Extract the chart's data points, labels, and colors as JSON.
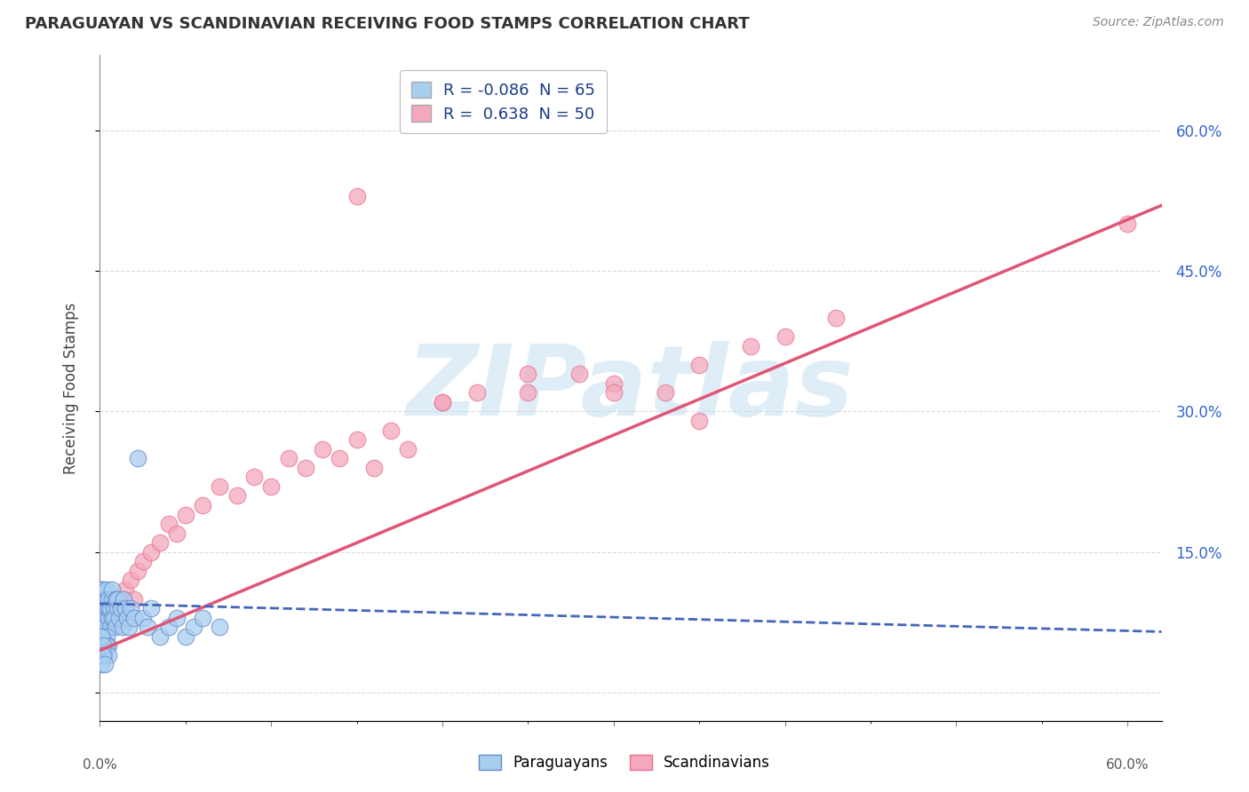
{
  "title": "PARAGUAYAN VS SCANDINAVIAN RECEIVING FOOD STAMPS CORRELATION CHART",
  "source": "Source: ZipAtlas.com",
  "ylabel": "Receiving Food Stamps",
  "right_yticklabels": [
    "",
    "15.0%",
    "30.0%",
    "45.0%",
    "60.0%"
  ],
  "xlim": [
    0.0,
    0.62
  ],
  "ylim": [
    -0.03,
    0.68
  ],
  "watermark": "ZIPatlas",
  "legend_paraguayan": "Paraguayans",
  "legend_scandinavian": "Scandinavians",
  "R_paraguayan": -0.086,
  "N_paraguayan": 65,
  "R_scandinavian": 0.638,
  "N_scandinavian": 50,
  "color_paraguayan": "#a8cef0",
  "color_scandinavian": "#f4a8bc",
  "color_edge_paraguayan": "#6688cc",
  "color_edge_scandinavian": "#e87090",
  "color_line_paraguayan": "#4466bb",
  "color_line_scandinavian": "#e05575",
  "legend_text_color": "#1a3a8a",
  "background_color": "#ffffff",
  "grid_color": "#cccccc",
  "title_color": "#333333",
  "watermark_color": "#c0dcf0",
  "par_x": [
    0.001,
    0.001,
    0.001,
    0.001,
    0.002,
    0.002,
    0.002,
    0.002,
    0.002,
    0.003,
    0.003,
    0.003,
    0.003,
    0.004,
    0.004,
    0.004,
    0.005,
    0.005,
    0.005,
    0.006,
    0.006,
    0.007,
    0.007,
    0.007,
    0.008,
    0.008,
    0.009,
    0.009,
    0.01,
    0.01,
    0.011,
    0.012,
    0.013,
    0.014,
    0.015,
    0.016,
    0.017,
    0.018,
    0.02,
    0.022,
    0.025,
    0.028,
    0.03,
    0.035,
    0.04,
    0.045,
    0.05,
    0.055,
    0.06,
    0.07,
    0.001,
    0.002,
    0.003,
    0.004,
    0.005,
    0.001,
    0.002,
    0.003,
    0.004,
    0.005,
    0.001,
    0.002,
    0.001,
    0.002,
    0.003
  ],
  "par_y": [
    0.09,
    0.1,
    0.11,
    0.07,
    0.1,
    0.09,
    0.11,
    0.08,
    0.07,
    0.1,
    0.09,
    0.08,
    0.07,
    0.09,
    0.1,
    0.11,
    0.08,
    0.09,
    0.1,
    0.07,
    0.09,
    0.08,
    0.1,
    0.11,
    0.09,
    0.08,
    0.1,
    0.07,
    0.09,
    0.1,
    0.08,
    0.09,
    0.07,
    0.1,
    0.09,
    0.08,
    0.07,
    0.09,
    0.08,
    0.25,
    0.08,
    0.07,
    0.09,
    0.06,
    0.07,
    0.08,
    0.06,
    0.07,
    0.08,
    0.07,
    0.05,
    0.06,
    0.05,
    0.06,
    0.05,
    0.04,
    0.05,
    0.04,
    0.05,
    0.04,
    0.06,
    0.05,
    0.03,
    0.04,
    0.03
  ],
  "sca_x": [
    0.001,
    0.002,
    0.003,
    0.004,
    0.005,
    0.006,
    0.007,
    0.008,
    0.009,
    0.01,
    0.012,
    0.015,
    0.018,
    0.02,
    0.022,
    0.025,
    0.03,
    0.035,
    0.04,
    0.045,
    0.05,
    0.06,
    0.07,
    0.08,
    0.09,
    0.1,
    0.11,
    0.12,
    0.13,
    0.14,
    0.15,
    0.16,
    0.17,
    0.18,
    0.2,
    0.22,
    0.25,
    0.28,
    0.3,
    0.33,
    0.35,
    0.38,
    0.4,
    0.43,
    0.15,
    0.3,
    0.2,
    0.25,
    0.35,
    0.6
  ],
  "sca_y": [
    0.09,
    0.1,
    0.08,
    0.09,
    0.1,
    0.07,
    0.09,
    0.08,
    0.1,
    0.09,
    0.1,
    0.11,
    0.12,
    0.1,
    0.13,
    0.14,
    0.15,
    0.16,
    0.18,
    0.17,
    0.19,
    0.2,
    0.22,
    0.21,
    0.23,
    0.22,
    0.25,
    0.24,
    0.26,
    0.25,
    0.27,
    0.24,
    0.28,
    0.26,
    0.31,
    0.32,
    0.32,
    0.34,
    0.33,
    0.32,
    0.35,
    0.37,
    0.38,
    0.4,
    0.53,
    0.32,
    0.31,
    0.34,
    0.29,
    0.5
  ],
  "sca_line_x0": 0.0,
  "sca_line_y0": 0.045,
  "sca_line_x1": 0.62,
  "sca_line_y1": 0.52,
  "par_line_x0": 0.0,
  "par_line_y0": 0.095,
  "par_line_x1": 0.62,
  "par_line_y1": 0.065
}
